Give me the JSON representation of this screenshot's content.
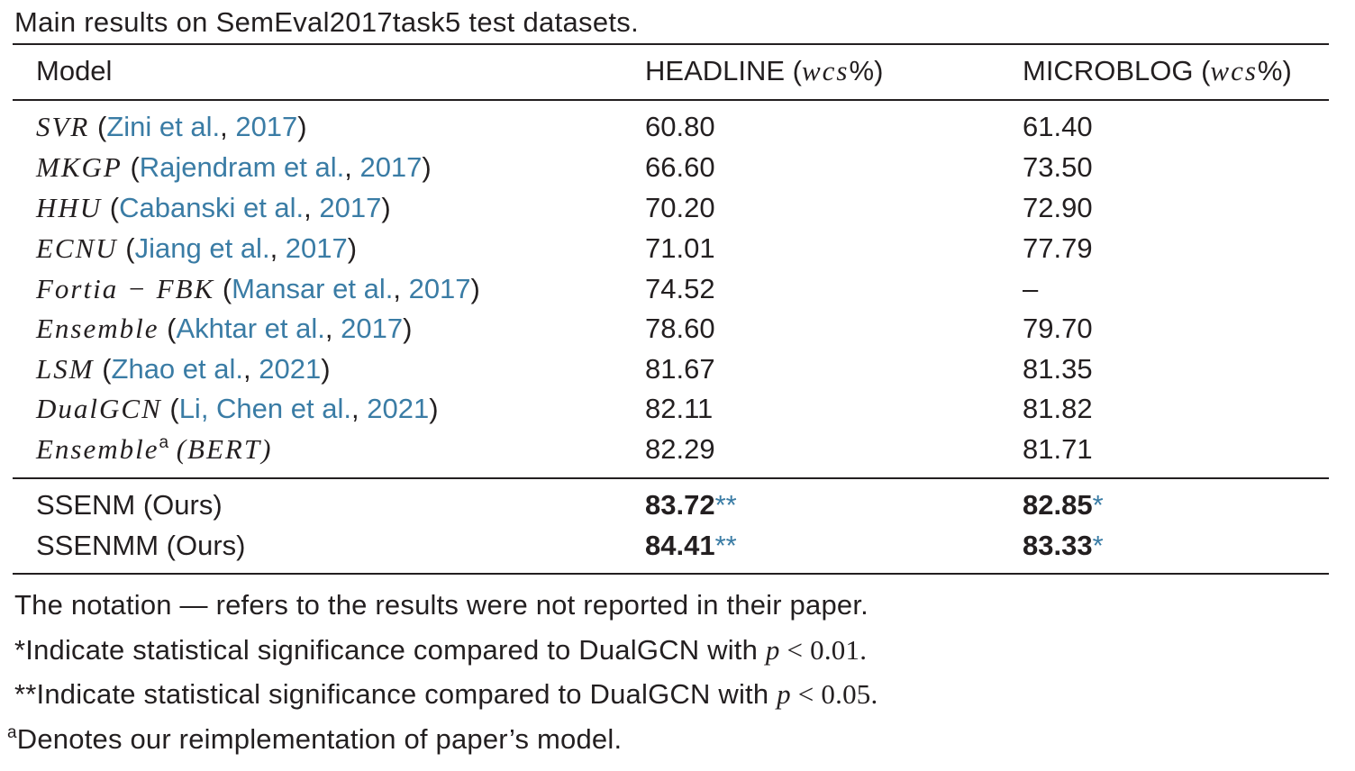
{
  "caption": "Main results on SemEval2017task5 test datasets.",
  "header": {
    "model": "Model",
    "headline_label": "HEADLINE",
    "headline_metric_open": "(",
    "headline_metric": "wcs",
    "headline_metric_close": "%)",
    "microblog_label": "MICROBLOG",
    "microblog_metric_open": "(",
    "microblog_metric": "wcs",
    "microblog_metric_close": "%)"
  },
  "rows": [
    {
      "name": "SVR",
      "cite": "Zini et al.",
      "year": "2017",
      "headline": "60.80",
      "microblog": "61.40"
    },
    {
      "name": "MKGP",
      "cite": "Rajendram et al.",
      "year": "2017",
      "headline": "66.60",
      "microblog": "73.50"
    },
    {
      "name": "HHU",
      "cite": "Cabanski et al.",
      "year": "2017",
      "headline": "70.20",
      "microblog": "72.90"
    },
    {
      "name": "ECNU",
      "cite": "Jiang et al.",
      "year": "2017",
      "headline": "71.01",
      "microblog": "77.79"
    },
    {
      "name": "Fortia − FBK",
      "cite": "Mansar et al.",
      "year": "2017",
      "headline": "74.52",
      "microblog": "–"
    },
    {
      "name": "Ensemble",
      "cite": "Akhtar et al.",
      "year": "2017",
      "headline": "78.60",
      "microblog": "79.70"
    },
    {
      "name": "LSM",
      "cite": "Zhao et al.",
      "year": "2021",
      "headline": "81.67",
      "microblog": "81.35"
    },
    {
      "name": "DualGCN",
      "cite": "Li, Chen et al.",
      "year": "2021",
      "headline": "82.11",
      "microblog": "81.82"
    },
    {
      "name": "Ensemble",
      "sup": "a",
      "extra": "(BERT)",
      "headline": "82.29",
      "microblog": "81.71"
    }
  ],
  "ours": [
    {
      "name": "SSENM (Ours)",
      "headline": "83.72",
      "headline_mark": "**",
      "microblog": "82.85",
      "microblog_mark": "*"
    },
    {
      "name": "SSENMM (Ours)",
      "headline": "84.41",
      "headline_mark": "**",
      "microblog": "83.33",
      "microblog_mark": "*"
    }
  ],
  "notes": {
    "n1": "The notation — refers to the results were not reported in their paper.",
    "n2_text": "*Indicate statistical significance compared to DualGCN with ",
    "n2_p": "p",
    "n2_val": " < 0.01.",
    "n3_text": "**Indicate statistical significance compared to DualGCN with ",
    "n3_p": "p",
    "n3_val": " < 0.05.",
    "n4_sup": "a",
    "n4_text": "Denotes our reimplementation of paper’s model."
  },
  "colors": {
    "text": "#231f20",
    "citation": "#3a7ca5"
  }
}
